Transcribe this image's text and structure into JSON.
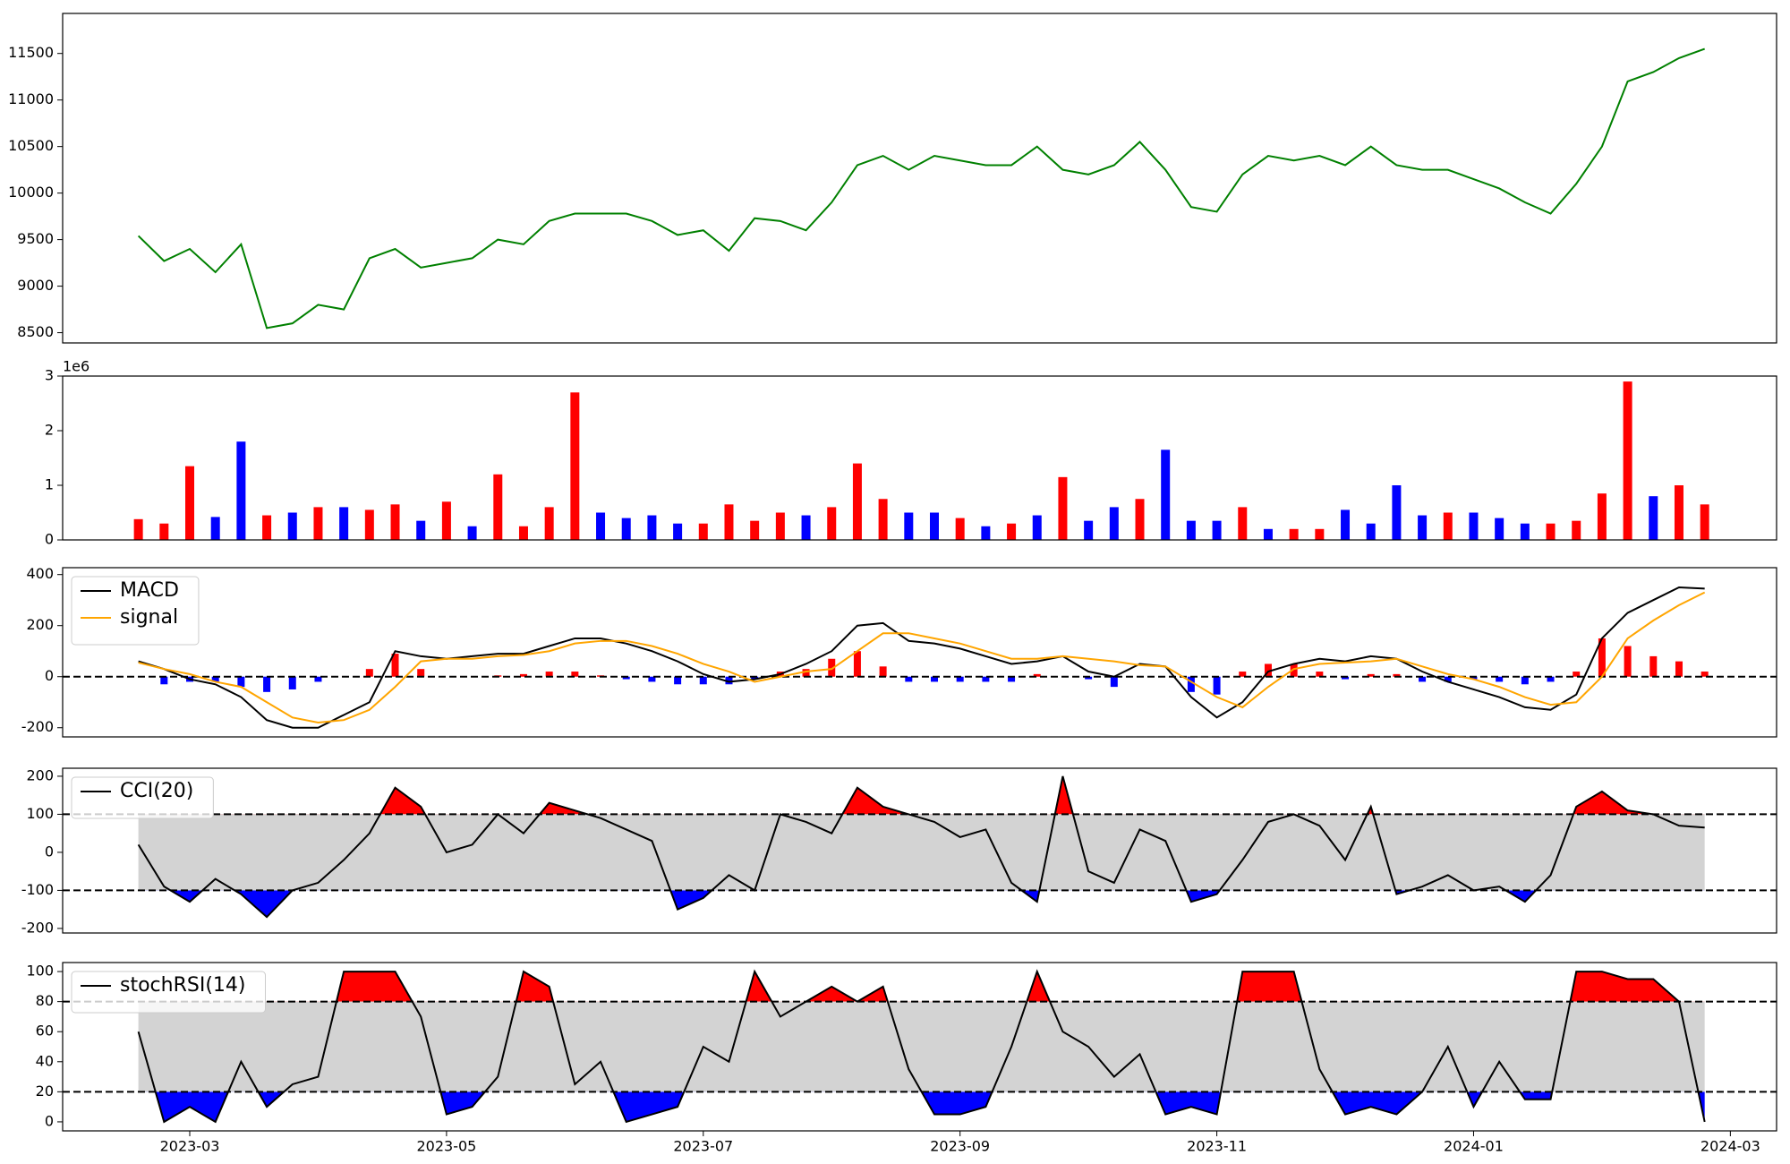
{
  "chart_data": [
    {
      "type": "line",
      "x": [
        2.6,
        2.8,
        3,
        3.2,
        3.4,
        3.6,
        3.8,
        4,
        4.2,
        4.4,
        4.6,
        4.8,
        5,
        5.2,
        5.4,
        5.6,
        5.8,
        6,
        6.2,
        6.4,
        6.6,
        6.8,
        7,
        7.2,
        7.4,
        7.6,
        7.8,
        8,
        8.2,
        8.4,
        8.6,
        8.8,
        9,
        9.2,
        9.4,
        9.6,
        9.8,
        10,
        10.2,
        10.4,
        10.6,
        10.8,
        11,
        11.2,
        11.4,
        11.6,
        11.8,
        12,
        12.2,
        12.4,
        12.6,
        12.8,
        13,
        13.2,
        13.4,
        13.6,
        13.8,
        14,
        14.2,
        14.4,
        14.6,
        14.8
      ],
      "series": [
        {
          "color": "green",
          "values": [
            9540,
            9270,
            9400,
            9150,
            9450,
            8550,
            8600,
            8800,
            8750,
            9300,
            9400,
            9200,
            9250,
            9300,
            9500,
            9450,
            9700,
            9780,
            9780,
            9780,
            9700,
            9550,
            9600,
            9380,
            9730,
            9700,
            9600,
            9900,
            10300,
            10400,
            10250,
            10400,
            10350,
            10300,
            10300,
            10500,
            10250,
            10200,
            10300,
            10550,
            10250,
            9850,
            9800,
            10200,
            10400,
            10350,
            10400,
            10300,
            10500,
            10300,
            10250,
            10250,
            10150,
            10050,
            9900,
            9780,
            10100,
            10500,
            11200,
            11300,
            11450,
            11550
          ]
        }
      ],
      "xlim": [
        2.01,
        15.36
      ],
      "ylim": [
        8390,
        11930
      ],
      "yticks": [
        8500,
        9000,
        9500,
        10000,
        10500,
        11000,
        11500
      ]
    },
    {
      "type": "bar",
      "x": [
        2.6,
        2.8,
        3,
        3.2,
        3.4,
        3.6,
        3.8,
        4,
        4.2,
        4.4,
        4.6,
        4.8,
        5,
        5.2,
        5.4,
        5.6,
        5.8,
        6,
        6.2,
        6.4,
        6.6,
        6.8,
        7,
        7.2,
        7.4,
        7.6,
        7.8,
        8,
        8.2,
        8.4,
        8.6,
        8.8,
        9,
        9.2,
        9.4,
        9.6,
        9.8,
        10,
        10.2,
        10.4,
        10.6,
        10.8,
        11,
        11.2,
        11.4,
        11.6,
        11.8,
        12,
        12.2,
        12.4,
        12.6,
        12.8,
        13,
        13.2,
        13.4,
        13.6,
        13.8,
        14,
        14.2,
        14.4,
        14.6,
        14.8
      ],
      "values": [
        380000,
        300000,
        1350000,
        420000,
        1800000,
        450000,
        500000,
        600000,
        600000,
        550000,
        650000,
        350000,
        700000,
        250000,
        1200000,
        250000,
        600000,
        2700000,
        500000,
        400000,
        450000,
        300000,
        300000,
        650000,
        350000,
        500000,
        450000,
        600000,
        1400000,
        750000,
        500000,
        500000,
        400000,
        250000,
        300000,
        450000,
        1150000,
        350000,
        600000,
        750000,
        1650000,
        350000,
        350000,
        600000,
        200000,
        200000,
        200000,
        550000,
        300000,
        1000000,
        450000,
        500000,
        500000,
        400000,
        300000,
        300000,
        350000,
        850000,
        2900000,
        800000,
        1000000,
        650000
      ],
      "colors": [
        "red",
        "red",
        "red",
        "blue",
        "blue",
        "red",
        "blue",
        "red",
        "blue",
        "red",
        "red",
        "blue",
        "red",
        "blue",
        "red",
        "red",
        "red",
        "red",
        "blue",
        "blue",
        "blue",
        "blue",
        "red",
        "red",
        "red",
        "red",
        "blue",
        "red",
        "red",
        "red",
        "blue",
        "blue",
        "red",
        "blue",
        "red",
        "blue",
        "red",
        "blue",
        "blue",
        "red",
        "blue",
        "blue",
        "blue",
        "red",
        "blue",
        "red",
        "red",
        "blue",
        "blue",
        "blue",
        "blue",
        "red",
        "blue",
        "blue",
        "blue",
        "red",
        "red",
        "red",
        "red",
        "blue",
        "red",
        "red"
      ],
      "xlim": [
        2.01,
        15.36
      ],
      "ylim": [
        0,
        3000000
      ],
      "yticks": [
        {
          "value": 0,
          "label": "0"
        },
        {
          "value": 1000000,
          "label": "1"
        },
        {
          "value": 2000000,
          "label": "2"
        },
        {
          "value": 3000000,
          "label": "3"
        }
      ],
      "offset_label": "1e6"
    },
    {
      "type": "line",
      "x": [
        2.6,
        2.8,
        3,
        3.2,
        3.4,
        3.6,
        3.8,
        4,
        4.2,
        4.4,
        4.6,
        4.8,
        5,
        5.2,
        5.4,
        5.6,
        5.8,
        6,
        6.2,
        6.4,
        6.6,
        6.8,
        7,
        7.2,
        7.4,
        7.6,
        7.8,
        8,
        8.2,
        8.4,
        8.6,
        8.8,
        9,
        9.2,
        9.4,
        9.6,
        9.8,
        10,
        10.2,
        10.4,
        10.6,
        10.8,
        11,
        11.2,
        11.4,
        11.6,
        11.8,
        12,
        12.2,
        12.4,
        12.6,
        12.8,
        13,
        13.2,
        13.4,
        13.6,
        13.8,
        14,
        14.2,
        14.4,
        14.6,
        14.8
      ],
      "series": [
        {
          "name": "MACD",
          "color": "black",
          "values": [
            60,
            30,
            -10,
            -30,
            -80,
            -170,
            -200,
            -200,
            -150,
            -100,
            100,
            80,
            70,
            80,
            90,
            90,
            120,
            150,
            150,
            130,
            100,
            60,
            10,
            -20,
            -10,
            10,
            50,
            100,
            200,
            210,
            140,
            130,
            110,
            80,
            50,
            60,
            80,
            20,
            0,
            50,
            40,
            -80,
            -160,
            -100,
            20,
            50,
            70,
            60,
            80,
            70,
            20,
            -20,
            -50,
            -80,
            -120,
            -130,
            -70,
            150,
            250,
            300,
            350,
            345
          ]
        },
        {
          "name": "signal",
          "color": "orange",
          "values": [
            55,
            30,
            10,
            -20,
            -40,
            -100,
            -160,
            -180,
            -170,
            -130,
            -40,
            60,
            70,
            70,
            80,
            85,
            100,
            130,
            140,
            140,
            120,
            90,
            50,
            20,
            -20,
            0,
            20,
            30,
            100,
            170,
            170,
            150,
            130,
            100,
            70,
            70,
            80,
            70,
            60,
            45,
            40,
            -20,
            -80,
            -120,
            -40,
            30,
            50,
            55,
            60,
            70,
            40,
            10,
            -10,
            -40,
            -80,
            -110,
            -100,
            0,
            150,
            220,
            280,
            330
          ]
        }
      ],
      "histogram": {
        "pos_color": "red",
        "neg_color": "blue",
        "values": [
          0,
          -30,
          -20,
          -20,
          -40,
          -60,
          -50,
          -20,
          0,
          30,
          90,
          30,
          0,
          0,
          5,
          10,
          20,
          20,
          5,
          -10,
          -20,
          -30,
          -30,
          -30,
          -10,
          20,
          30,
          70,
          100,
          40,
          -20,
          -20,
          -20,
          -20,
          -20,
          10,
          0,
          -10,
          -40,
          0,
          0,
          -60,
          -70,
          20,
          50,
          50,
          20,
          -10,
          10,
          10,
          -20,
          -20,
          -10,
          -20,
          -30,
          -20,
          20,
          150,
          120,
          80,
          60,
          20
        ]
      },
      "hlines": [
        0
      ],
      "legend": "upper left",
      "xlim": [
        2.01,
        15.36
      ],
      "ylim": [
        -236,
        427
      ],
      "yticks": [
        -200,
        0,
        200,
        400
      ]
    },
    {
      "type": "band",
      "x": [
        2.6,
        2.8,
        3,
        3.2,
        3.4,
        3.6,
        3.8,
        4,
        4.2,
        4.4,
        4.6,
        4.8,
        5,
        5.2,
        5.4,
        5.6,
        5.8,
        6,
        6.2,
        6.4,
        6.6,
        6.8,
        7,
        7.2,
        7.4,
        7.6,
        7.8,
        8,
        8.2,
        8.4,
        8.6,
        8.8,
        9,
        9.2,
        9.4,
        9.6,
        9.8,
        10,
        10.2,
        10.4,
        10.6,
        10.8,
        11,
        11.2,
        11.4,
        11.6,
        11.8,
        12,
        12.2,
        12.4,
        12.6,
        12.8,
        13,
        13.2,
        13.4,
        13.6,
        13.8,
        14,
        14.2,
        14.4,
        14.6,
        14.8
      ],
      "series": [
        {
          "name": "CCI(20)",
          "color": "black",
          "values": [
            20,
            -90,
            -130,
            -70,
            -110,
            -170,
            -100,
            -80,
            -20,
            50,
            170,
            120,
            0,
            20,
            100,
            50,
            130,
            110,
            90,
            60,
            30,
            -150,
            -120,
            -60,
            -100,
            100,
            80,
            50,
            170,
            120,
            100,
            80,
            40,
            60,
            -80,
            -130,
            200,
            -50,
            -80,
            60,
            30,
            -130,
            -110,
            -20,
            80,
            100,
            70,
            -20,
            120,
            -110,
            -90,
            -60,
            -100,
            -90,
            -130,
            -60,
            120,
            160,
            110,
            100,
            70,
            65
          ]
        }
      ],
      "band": [
        -100,
        100
      ],
      "band_color": "lightgray",
      "above_color": "red",
      "below_color": "blue",
      "hlines": [
        100,
        -100
      ],
      "legend": "upper left",
      "xlim": [
        2.01,
        15.36
      ],
      "ylim": [
        -212,
        221
      ],
      "yticks": [
        -200,
        -100,
        0,
        100,
        200
      ]
    },
    {
      "type": "band",
      "x": [
        2.6,
        2.8,
        3,
        3.2,
        3.4,
        3.6,
        3.8,
        4,
        4.2,
        4.4,
        4.6,
        4.8,
        5,
        5.2,
        5.4,
        5.6,
        5.8,
        6,
        6.2,
        6.4,
        6.6,
        6.8,
        7,
        7.2,
        7.4,
        7.6,
        7.8,
        8,
        8.2,
        8.4,
        8.6,
        8.8,
        9,
        9.2,
        9.4,
        9.6,
        9.8,
        10,
        10.2,
        10.4,
        10.6,
        10.8,
        11,
        11.2,
        11.4,
        11.6,
        11.8,
        12,
        12.2,
        12.4,
        12.6,
        12.8,
        13,
        13.2,
        13.4,
        13.6,
        13.8,
        14,
        14.2,
        14.4,
        14.6,
        14.8
      ],
      "series": [
        {
          "name": "stochRSI(14)",
          "color": "black",
          "values": [
            60,
            0,
            10,
            0,
            40,
            10,
            25,
            30,
            100,
            100,
            100,
            70,
            5,
            10,
            30,
            100,
            90,
            25,
            40,
            0,
            5,
            10,
            50,
            40,
            100,
            70,
            80,
            90,
            80,
            90,
            35,
            5,
            5,
            10,
            50,
            100,
            60,
            50,
            30,
            45,
            5,
            10,
            5,
            100,
            100,
            100,
            35,
            5,
            10,
            5,
            20,
            50,
            10,
            40,
            15,
            15,
            100,
            100,
            95,
            95,
            80,
            0
          ]
        }
      ],
      "band": [
        20,
        80
      ],
      "band_color": "lightgray",
      "above_color": "red",
      "below_color": "blue",
      "hlines": [
        80,
        20
      ],
      "legend": "upper left",
      "xlim": [
        2.01,
        15.36
      ],
      "ylim": [
        -6,
        106
      ],
      "yticks": [
        0,
        20,
        40,
        60,
        80,
        100
      ],
      "xticks": [
        {
          "value": 3,
          "label": "2023-03"
        },
        {
          "value": 5,
          "label": "2023-05"
        },
        {
          "value": 7,
          "label": "2023-07"
        },
        {
          "value": 9,
          "label": "2023-09"
        },
        {
          "value": 11,
          "label": "2023-11"
        },
        {
          "value": 13,
          "label": "2024-01"
        },
        {
          "value": 15,
          "label": "2024-03"
        }
      ]
    }
  ]
}
